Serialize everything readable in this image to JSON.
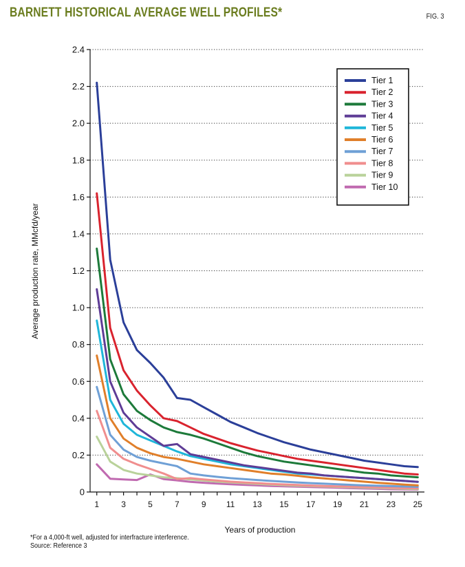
{
  "header": {
    "title": "BARNETT HISTORICAL AVERAGE WELL PROFILES*",
    "fig_label": "FIG. 3"
  },
  "footnotes": {
    "note": "*For a 4,000-ft well, adjusted for interfracture interference.",
    "source": "Source: Reference 3"
  },
  "chart_data": {
    "type": "line",
    "xlabel": "Years of production",
    "ylabel": "Average production rate, MMcfd/year",
    "xlim": [
      0.5,
      25.5
    ],
    "ylim": [
      0,
      2.4
    ],
    "xticks": [
      1,
      3,
      5,
      7,
      9,
      11,
      13,
      15,
      17,
      19,
      21,
      23,
      25
    ],
    "yticks": [
      0,
      0.2,
      0.4,
      0.6,
      0.8,
      1.0,
      1.2,
      1.4,
      1.6,
      1.8,
      2.0,
      2.2,
      2.4
    ],
    "ytick_labels": [
      "0",
      "0.2",
      "0.4",
      "0.6",
      "0.8",
      "1.0",
      "1.2",
      "1.4",
      "1.6",
      "1.8",
      "2.0",
      "2.2",
      "2.4"
    ],
    "grid": "horizontal-dotted",
    "legend_position": "top-right",
    "x": [
      1,
      2,
      3,
      4,
      5,
      6,
      7,
      8,
      9,
      10,
      11,
      12,
      13,
      14,
      15,
      16,
      17,
      18,
      19,
      20,
      21,
      22,
      23,
      24,
      25
    ],
    "series": [
      {
        "name": "Tier 1",
        "color": "#2b3f99",
        "values": [
          2.22,
          1.26,
          0.92,
          0.77,
          0.7,
          0.62,
          0.51,
          0.5,
          0.46,
          0.42,
          0.38,
          0.35,
          0.32,
          0.295,
          0.27,
          0.25,
          0.23,
          0.215,
          0.2,
          0.185,
          0.17,
          0.16,
          0.15,
          0.14,
          0.135
        ]
      },
      {
        "name": "Tier 2",
        "color": "#d9232e",
        "values": [
          1.62,
          0.89,
          0.66,
          0.55,
          0.47,
          0.4,
          0.385,
          0.35,
          0.315,
          0.29,
          0.265,
          0.245,
          0.225,
          0.21,
          0.195,
          0.18,
          0.17,
          0.16,
          0.15,
          0.14,
          0.13,
          0.12,
          0.11,
          0.1,
          0.095
        ]
      },
      {
        "name": "Tier 3",
        "color": "#1d7a3a",
        "values": [
          1.32,
          0.72,
          0.53,
          0.44,
          0.39,
          0.35,
          0.325,
          0.31,
          0.29,
          0.265,
          0.24,
          0.215,
          0.195,
          0.18,
          0.165,
          0.155,
          0.145,
          0.135,
          0.125,
          0.115,
          0.105,
          0.1,
          0.09,
          0.085,
          0.08
        ]
      },
      {
        "name": "Tier 4",
        "color": "#5e3c96",
        "values": [
          1.1,
          0.6,
          0.43,
          0.35,
          0.3,
          0.25,
          0.26,
          0.205,
          0.19,
          0.175,
          0.16,
          0.145,
          0.135,
          0.125,
          0.115,
          0.105,
          0.1,
          0.09,
          0.085,
          0.08,
          0.075,
          0.07,
          0.065,
          0.06,
          0.055
        ]
      },
      {
        "name": "Tier 5",
        "color": "#1fb6d9",
        "values": [
          0.93,
          0.5,
          0.37,
          0.31,
          0.28,
          0.25,
          0.22,
          0.195,
          0.18,
          0.165,
          0.15,
          0.14,
          0.13,
          0.12,
          0.11,
          0.1,
          0.095,
          0.09,
          0.085,
          0.08,
          0.075,
          0.07,
          0.065,
          0.06,
          0.055
        ]
      },
      {
        "name": "Tier 6",
        "color": "#e07f2a",
        "values": [
          0.74,
          0.4,
          0.29,
          0.24,
          0.21,
          0.19,
          0.18,
          0.165,
          0.15,
          0.14,
          0.13,
          0.12,
          0.11,
          0.1,
          0.095,
          0.088,
          0.08,
          0.074,
          0.068,
          0.062,
          0.056,
          0.05,
          0.045,
          0.04,
          0.036
        ]
      },
      {
        "name": "Tier 7",
        "color": "#6fa0d6",
        "values": [
          0.57,
          0.31,
          0.23,
          0.19,
          0.17,
          0.155,
          0.14,
          0.1,
          0.09,
          0.082,
          0.075,
          0.07,
          0.065,
          0.06,
          0.056,
          0.052,
          0.048,
          0.045,
          0.042,
          0.039,
          0.036,
          0.034,
          0.032,
          0.03,
          0.028
        ]
      },
      {
        "name": "Tier 8",
        "color": "#f08e8e",
        "values": [
          0.44,
          0.24,
          0.18,
          0.15,
          0.125,
          0.1,
          0.07,
          0.075,
          0.068,
          0.062,
          0.056,
          0.052,
          0.048,
          0.044,
          0.041,
          0.038,
          0.035,
          0.033,
          0.031,
          0.029,
          0.027,
          0.025,
          0.023,
          0.021,
          0.02
        ]
      },
      {
        "name": "Tier 9",
        "color": "#b9d29a",
        "values": [
          0.3,
          0.165,
          0.12,
          0.1,
          0.09,
          0.08,
          0.075,
          0.068,
          0.062,
          0.056,
          0.052,
          0.048,
          0.044,
          0.04,
          0.037,
          0.034,
          0.032,
          0.03,
          0.028,
          0.026,
          0.024,
          0.022,
          0.02,
          0.018,
          0.016
        ]
      },
      {
        "name": "Tier 10",
        "color": "#c06ab0",
        "values": [
          0.15,
          0.072,
          0.068,
          0.065,
          0.095,
          0.07,
          0.063,
          0.055,
          0.05,
          0.046,
          0.042,
          0.039,
          0.036,
          0.033,
          0.031,
          0.029,
          0.027,
          0.025,
          0.023,
          0.021,
          0.019,
          0.017,
          0.015,
          0.014,
          0.013
        ]
      }
    ]
  }
}
